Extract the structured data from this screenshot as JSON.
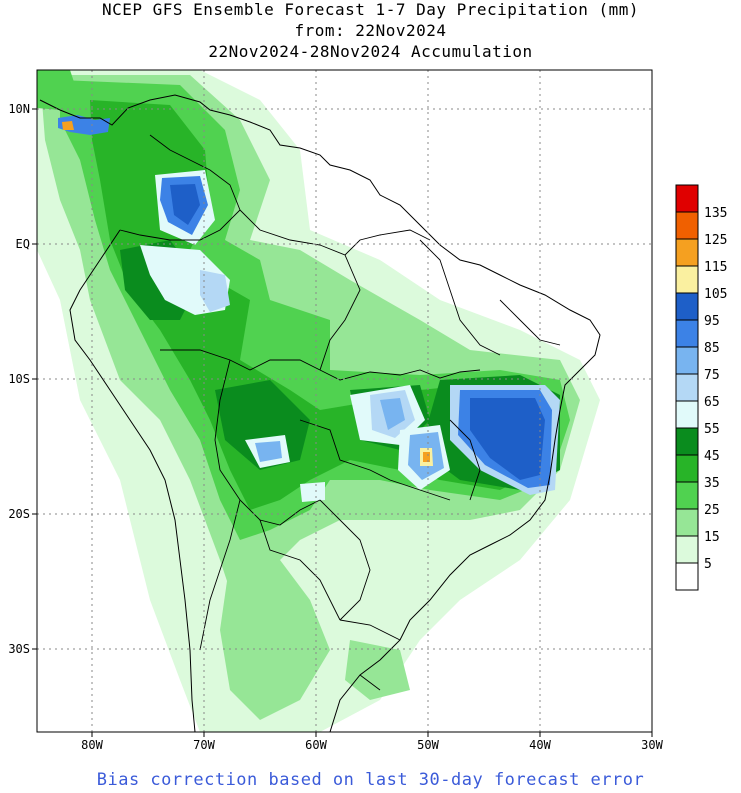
{
  "title_lines": [
    "NCEP GFS Ensemble Forecast 1-7 Day Precipitation (mm)",
    "from: 22Nov2024",
    "22Nov2024-28Nov2024 Accumulation"
  ],
  "footer": "Bias correction based on last 30-day forecast error",
  "lon_labels": [
    "80W",
    "70W",
    "60W",
    "50W",
    "40W",
    "30W"
  ],
  "lat_labels": [
    "10N",
    "EQ",
    "10S",
    "20S",
    "30S"
  ],
  "legend": {
    "labels": [
      "135",
      "125",
      "115",
      "105",
      "95",
      "85",
      "75",
      "65",
      "55",
      "45",
      "35",
      "25",
      "15",
      "5"
    ],
    "colors": [
      "#e00000",
      "#f06000",
      "#f5a020",
      "#faf0a0",
      "#1e5fc8",
      "#3c82e6",
      "#78b4f0",
      "#b4d8f5",
      "#e1fafa",
      "#0a8c1e",
      "#28b428",
      "#50d250",
      "#96e696",
      "#dcfadc",
      "#ffffff"
    ]
  }
}
